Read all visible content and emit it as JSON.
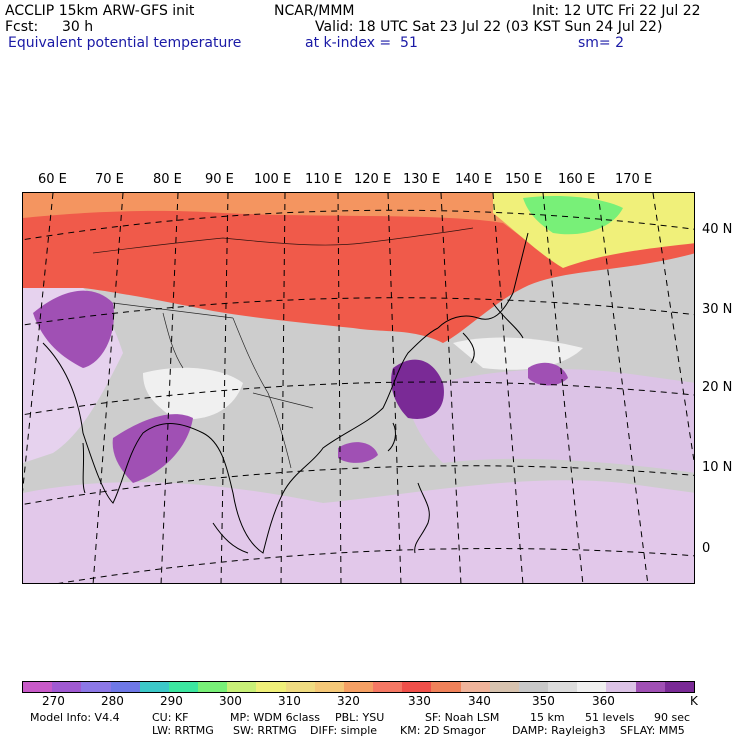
{
  "header": {
    "model": "ACCLIP 15km ARW-GFS init",
    "org": "NCAR/MMM",
    "init": "Init: 12 UTC Fri 22 Jul 22",
    "fcst_label": "Fcst:",
    "fcst_value": "30 h",
    "valid": "Valid: 18 UTC Sat 23 Jul 22 (03 KST Sun 24 Jul 22)",
    "field": "Equivalent potential temperature",
    "level": "at k-index =  51",
    "smoothing": "sm= 2"
  },
  "map": {
    "lon_labels": [
      "60 E",
      "70 E",
      "80 E",
      "90 E",
      "100 E",
      "110 E",
      "120 E",
      "130 E",
      "140 E",
      "150 E",
      "160 E",
      "170 E"
    ],
    "lat_labels": [
      "40 N",
      "30 N",
      "20 N",
      "10 N",
      "0"
    ]
  },
  "colorbar": {
    "colors": [
      "#c85ac8",
      "#a05ad2",
      "#8c78e6",
      "#6e78e6",
      "#3cc8c8",
      "#3ce6a0",
      "#78f078",
      "#c8f078",
      "#f0f07a",
      "#f0dc82",
      "#f5c878",
      "#f5a064",
      "#f57864",
      "#f0504a",
      "#f0825a",
      "#f0b49b",
      "#d7c3af",
      "#c8c8c8",
      "#dcdcdc",
      "#f0f0f0",
      "#dcc3e6",
      "#a050b4",
      "#7a2a96"
    ],
    "ticks": [
      "270",
      "280",
      "290",
      "300",
      "310",
      "320",
      "330",
      "340",
      "350",
      "360"
    ],
    "unit": "K"
  },
  "footer": {
    "line1": [
      "Model Info: V4.4",
      "CU: KF",
      "MP: WDM 6class",
      "PBL: YSU",
      "SF: Noah LSM",
      "15 km",
      "51 levels",
      "90 sec"
    ],
    "line2": [
      "LW: RRTMG",
      "SW: RRTMG",
      "DIFF: simple",
      "KM: 2D Smagor",
      "DAMP: Rayleigh3",
      "SFLAY: MM5"
    ]
  }
}
